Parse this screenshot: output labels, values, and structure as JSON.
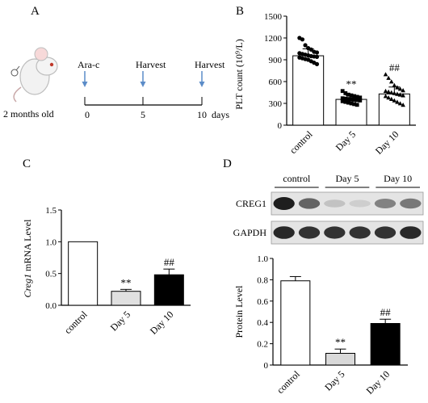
{
  "panels": [
    {
      "label": "A",
      "timeline": {
        "mouse_label": "2 months old",
        "events": [
          {
            "name": "Ara-c",
            "tick": "0"
          },
          {
            "name": "Harvest",
            "tick": "5"
          },
          {
            "name": "Harvest",
            "tick": "10"
          }
        ],
        "unit": "days",
        "colors": {
          "arrow": "#5b8cc8",
          "line": "#000000"
        }
      }
    },
    {
      "label": "B",
      "chart_data": {
        "type": "bar",
        "ylabel": "PLT count (10⁹/L)",
        "ylim": [
          0,
          1500
        ],
        "yticks": [
          0,
          300,
          600,
          900,
          1200,
          1500
        ],
        "categories": [
          "control",
          "Day 5",
          "Day 10"
        ],
        "values": [
          955,
          355,
          430
        ],
        "errors": [
          95,
          55,
          95
        ],
        "fills": [
          "#ffffff",
          "#ffffff",
          "#ffffff"
        ],
        "markers": [
          "circle",
          "square",
          "triangle"
        ],
        "annotations": [
          "",
          "**",
          "##"
        ],
        "points": [
          [
            1200,
            1180,
            1100,
            1060,
            1040,
            1010,
            1000,
            990,
            980,
            970,
            960,
            950,
            945,
            940,
            930,
            920,
            910,
            900,
            880,
            860,
            840
          ],
          [
            470,
            440,
            420,
            410,
            400,
            390,
            380,
            370,
            365,
            360,
            355,
            350,
            345,
            340,
            330,
            320,
            310,
            300,
            290,
            280
          ],
          [
            700,
            650,
            600,
            550,
            520,
            500,
            480,
            470,
            460,
            450,
            440,
            430,
            420,
            410,
            400,
            380,
            360,
            340,
            320,
            300,
            280
          ]
        ]
      }
    },
    {
      "label": "C",
      "chart_data": {
        "type": "bar",
        "ylabel_italic": "Creg1",
        "ylabel_rest": " mRNA  Level",
        "ylim": [
          0,
          1.5
        ],
        "yticks": [
          "0.0",
          "0.5",
          "1.0",
          "1.5"
        ],
        "categories": [
          "control",
          "Day 5",
          "Day 10"
        ],
        "values": [
          1.0,
          0.22,
          0.48
        ],
        "errors": [
          0,
          0.03,
          0.09
        ],
        "fills": [
          "#ffffff",
          "#e0e0e0",
          "#000000"
        ],
        "annotations": [
          "",
          "**",
          "##"
        ]
      }
    },
    {
      "label": "D",
      "blot": {
        "groups": [
          "control",
          "Day 5",
          "Day 10"
        ],
        "rows": [
          {
            "name": "CREG1",
            "intensity": [
              1.0,
              0.65,
              0.18,
              0.12,
              0.5,
              0.55
            ]
          },
          {
            "name": "GAPDH",
            "intensity": [
              0.95,
              0.9,
              0.9,
              0.9,
              0.9,
              0.95
            ]
          }
        ]
      },
      "chart_data": {
        "type": "bar",
        "ylabel": "Protein Level",
        "ylim": [
          0,
          1.0
        ],
        "yticks": [
          "0",
          "0.2",
          "0.4",
          "0.6",
          "0.8",
          "1.0"
        ],
        "categories": [
          "control",
          "Day 5",
          "Day 10"
        ],
        "values": [
          0.79,
          0.11,
          0.39
        ],
        "errors": [
          0.04,
          0.04,
          0.04
        ],
        "fills": [
          "#ffffff",
          "#d9d9d9",
          "#000000"
        ],
        "annotations": [
          "",
          "**",
          "##"
        ]
      }
    }
  ]
}
